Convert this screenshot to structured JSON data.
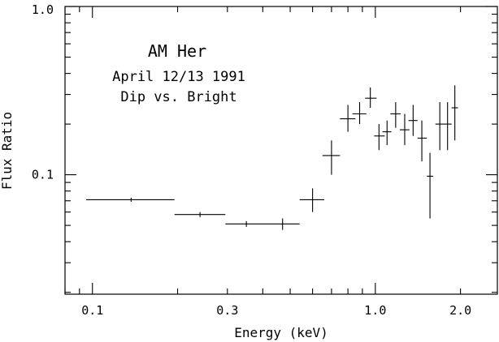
{
  "chart_data": {
    "type": "scatter",
    "title": "",
    "xlabel": "Energy (keV)",
    "ylabel": "Flux Ratio",
    "xscale": "log",
    "yscale": "log",
    "xlim": [
      0.08,
      2.7
    ],
    "ylim": [
      0.0195,
      1.0
    ],
    "xticks": [
      0.1,
      0.3,
      1.0,
      2.0
    ],
    "xtick_labels": [
      "0.1",
      "0.3",
      "1.0",
      "2.0"
    ],
    "yticks": [
      0.1,
      1.0
    ],
    "ytick_labels": [
      "0.1",
      "1.0"
    ],
    "grid": false,
    "annotations": [
      "AM Her",
      "April 12/13 1991",
      "Dip vs. Bright"
    ],
    "points": [
      {
        "x": 0.137,
        "xlo": 0.095,
        "xhi": 0.195,
        "y": 0.071,
        "ylo": 0.069,
        "yhi": 0.073
      },
      {
        "x": 0.24,
        "xlo": 0.195,
        "xhi": 0.295,
        "y": 0.058,
        "ylo": 0.056,
        "yhi": 0.06
      },
      {
        "x": 0.35,
        "xlo": 0.295,
        "xhi": 0.41,
        "y": 0.051,
        "ylo": 0.049,
        "yhi": 0.053
      },
      {
        "x": 0.47,
        "xlo": 0.41,
        "xhi": 0.54,
        "y": 0.051,
        "ylo": 0.047,
        "yhi": 0.055
      },
      {
        "x": 0.6,
        "xlo": 0.54,
        "xhi": 0.66,
        "y": 0.071,
        "ylo": 0.06,
        "yhi": 0.083
      },
      {
        "x": 0.7,
        "xlo": 0.65,
        "xhi": 0.75,
        "y": 0.13,
        "ylo": 0.1,
        "yhi": 0.16
      },
      {
        "x": 0.8,
        "xlo": 0.75,
        "xhi": 0.85,
        "y": 0.215,
        "ylo": 0.18,
        "yhi": 0.26
      },
      {
        "x": 0.88,
        "xlo": 0.83,
        "xhi": 0.93,
        "y": 0.23,
        "ylo": 0.2,
        "yhi": 0.27
      },
      {
        "x": 0.96,
        "xlo": 0.92,
        "xhi": 1.01,
        "y": 0.285,
        "ylo": 0.25,
        "yhi": 0.33
      },
      {
        "x": 1.03,
        "xlo": 0.99,
        "xhi": 1.08,
        "y": 0.17,
        "ylo": 0.14,
        "yhi": 0.2
      },
      {
        "x": 1.1,
        "xlo": 1.06,
        "xhi": 1.14,
        "y": 0.18,
        "ylo": 0.15,
        "yhi": 0.21
      },
      {
        "x": 1.18,
        "xlo": 1.13,
        "xhi": 1.23,
        "y": 0.23,
        "ylo": 0.19,
        "yhi": 0.27
      },
      {
        "x": 1.27,
        "xlo": 1.22,
        "xhi": 1.32,
        "y": 0.185,
        "ylo": 0.15,
        "yhi": 0.23
      },
      {
        "x": 1.36,
        "xlo": 1.31,
        "xhi": 1.41,
        "y": 0.21,
        "ylo": 0.17,
        "yhi": 0.26
      },
      {
        "x": 1.46,
        "xlo": 1.41,
        "xhi": 1.52,
        "y": 0.165,
        "ylo": 0.12,
        "yhi": 0.21
      },
      {
        "x": 1.56,
        "xlo": 1.52,
        "xhi": 1.6,
        "y": 0.098,
        "ylo": 0.055,
        "yhi": 0.135
      },
      {
        "x": 1.69,
        "xlo": 1.63,
        "xhi": 1.75,
        "y": 0.2,
        "ylo": 0.14,
        "yhi": 0.27
      },
      {
        "x": 1.8,
        "xlo": 1.75,
        "xhi": 1.86,
        "y": 0.2,
        "ylo": 0.14,
        "yhi": 0.27
      },
      {
        "x": 1.91,
        "xlo": 1.86,
        "xhi": 1.96,
        "y": 0.25,
        "ylo": 0.16,
        "yhi": 0.34
      }
    ]
  }
}
